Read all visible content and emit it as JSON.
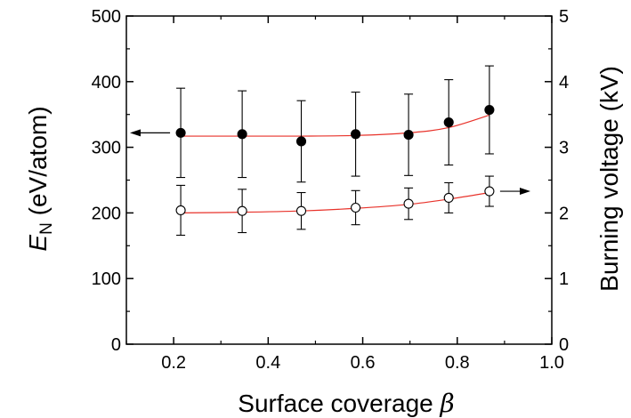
{
  "chart_data": {
    "type": "scatter",
    "xlabel": "Surface coverage",
    "xlabel_symbol": "β",
    "ylabel_left_symbol": "E",
    "ylabel_left_sub": "N",
    "ylabel_left_unit": " (eV/atom)",
    "ylabel_right": "Burning voltage (kV)",
    "xlim": [
      0.1,
      1.0
    ],
    "ylim_left": [
      0,
      500
    ],
    "ylim_right": [
      0,
      5
    ],
    "x_ticks": [
      "0.2",
      "0.4",
      "0.6",
      "0.8",
      "1.0"
    ],
    "x_tick_values": [
      0.2,
      0.4,
      0.6,
      0.8,
      1.0
    ],
    "y_left_ticks": [
      "0",
      "100",
      "200",
      "300",
      "400",
      "500"
    ],
    "y_left_tick_values": [
      0,
      100,
      200,
      300,
      400,
      500
    ],
    "y_right_ticks": [
      "0",
      "1",
      "2",
      "3",
      "4",
      "5"
    ],
    "y_right_tick_values": [
      0,
      1,
      2,
      3,
      4,
      5
    ],
    "grid": false,
    "legend": "none; arrows indicate axis for each series",
    "fit_color": "#e8322a",
    "series": [
      {
        "axis": "left",
        "marker": "filled-circle",
        "arrow": "left",
        "x": [
          0.215,
          0.345,
          0.47,
          0.585,
          0.697,
          0.782,
          0.868
        ],
        "y": [
          322,
          320,
          309,
          320,
          319,
          338,
          357
        ],
        "err": [
          68,
          66,
          62,
          64,
          62,
          65,
          67
        ],
        "fit": [
          317,
          317,
          317,
          318,
          322,
          330,
          349
        ]
      },
      {
        "axis": "right",
        "marker": "open-circle",
        "arrow": "right",
        "x": [
          0.215,
          0.345,
          0.47,
          0.585,
          0.697,
          0.782,
          0.868
        ],
        "y": [
          2.04,
          2.03,
          2.03,
          2.08,
          2.14,
          2.23,
          2.33
        ],
        "err": [
          0.38,
          0.33,
          0.28,
          0.26,
          0.24,
          0.23,
          0.23
        ],
        "fit": [
          2.0,
          2.01,
          2.03,
          2.07,
          2.13,
          2.21,
          2.31
        ]
      }
    ]
  }
}
